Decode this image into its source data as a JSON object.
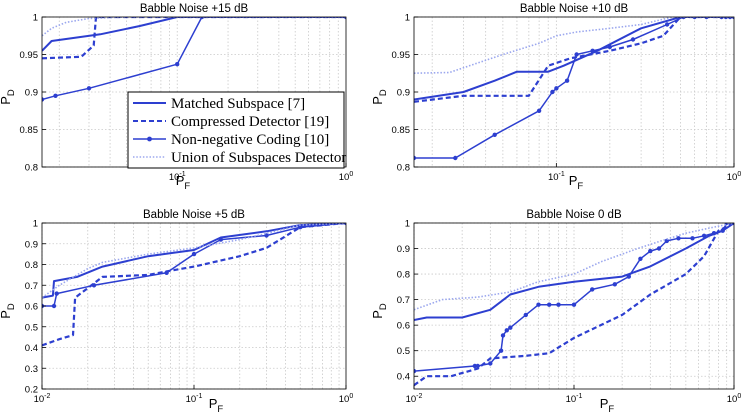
{
  "legend": {
    "entries": [
      {
        "label": "Matched Subspace [7]",
        "style": "solid"
      },
      {
        "label": "Compressed Detector [19]",
        "style": "dashed"
      },
      {
        "label": "Non-negative Coding [10]",
        "style": "solid-markers"
      },
      {
        "label": "Union of Subspaces Detector",
        "style": "dotted"
      }
    ]
  },
  "colors": {
    "main": "#2d3fd0",
    "dotted": "#9ba7ee",
    "grid": "#c9c9c9",
    "axis": "#000000"
  },
  "chart_data": [
    {
      "type": "line",
      "title": "Babble Noise +15 dB",
      "xlabel": "P_F",
      "ylabel": "P_D",
      "xscale": "log",
      "xlim": [
        0.0158,
        1
      ],
      "ylim": [
        0.8,
        1
      ],
      "xticks": [
        {
          "v": 0.1,
          "base": "10",
          "exp": "-1"
        },
        {
          "v": 1,
          "base": "10",
          "exp": "0"
        }
      ],
      "yticks": [
        0.8,
        0.85,
        0.9,
        0.95,
        1
      ],
      "ytick_labels": [
        "0.8",
        "0.85",
        "0.9",
        "0.95",
        "1"
      ],
      "grid": true,
      "legend_inside": true,
      "series": [
        {
          "name": "Matched Subspace [7]",
          "style": "solid",
          "x": [
            0.0158,
            0.018,
            0.035,
            0.06,
            0.1,
            1
          ],
          "y": [
            0.955,
            0.968,
            0.977,
            0.988,
            1.0,
            1.0
          ]
        },
        {
          "name": "Compressed Detector [19]",
          "style": "dashed",
          "x": [
            0.0158,
            0.027,
            0.032,
            0.033,
            1
          ],
          "y": [
            0.945,
            0.947,
            0.962,
            1.0,
            1.0
          ]
        },
        {
          "name": "Non-negative Coding [10]",
          "style": "solid-markers",
          "x": [
            0.0158,
            0.019,
            0.03,
            0.1,
            0.14,
            1
          ],
          "y": [
            0.89,
            0.895,
            0.905,
            0.937,
            1.0,
            1.0
          ]
        },
        {
          "name": "Union of Subspaces Detector",
          "style": "dotted",
          "x": [
            0.0158,
            0.018,
            0.022,
            0.03,
            0.05,
            1
          ],
          "y": [
            0.975,
            0.985,
            0.993,
            0.998,
            1.0,
            1.0
          ]
        }
      ]
    },
    {
      "type": "line",
      "title": "Babble Noise +10 dB",
      "xlabel": "P_F",
      "ylabel": "P_D",
      "xscale": "log",
      "xlim": [
        0.0158,
        1
      ],
      "ylim": [
        0.8,
        1
      ],
      "xticks": [
        {
          "v": 0.1,
          "base": "10",
          "exp": "-1"
        },
        {
          "v": 1,
          "base": "10",
          "exp": "0"
        }
      ],
      "yticks": [
        0.8,
        0.85,
        0.9,
        0.95,
        1
      ],
      "ytick_labels": [
        "0.8",
        "0.85",
        "0.9",
        "0.95",
        "1"
      ],
      "grid": true,
      "legend_inside": false,
      "series": [
        {
          "name": "Matched Subspace [7]",
          "style": "solid",
          "x": [
            0.0158,
            0.03,
            0.045,
            0.06,
            0.09,
            0.11,
            0.17,
            0.3,
            0.5,
            1
          ],
          "y": [
            0.89,
            0.9,
            0.915,
            0.927,
            0.927,
            0.935,
            0.955,
            0.985,
            1.0,
            1.0
          ]
        },
        {
          "name": "Compressed Detector [19]",
          "style": "dashed",
          "x": [
            0.0158,
            0.03,
            0.07,
            0.09,
            0.12,
            0.2,
            0.3,
            0.4,
            0.5,
            1
          ],
          "y": [
            0.887,
            0.895,
            0.895,
            0.935,
            0.945,
            0.955,
            0.965,
            0.975,
            1.0,
            1.0
          ]
        },
        {
          "name": "Non-negative Coding [10]",
          "style": "solid-markers",
          "x": [
            0.0158,
            0.027,
            0.045,
            0.08,
            0.095,
            0.1,
            0.115,
            0.13,
            0.16,
            0.2,
            0.27,
            0.42,
            0.52,
            0.6,
            0.7,
            0.85,
            0.9,
            0.95,
            1
          ],
          "y": [
            0.812,
            0.812,
            0.843,
            0.875,
            0.9,
            0.905,
            0.915,
            0.95,
            0.955,
            0.96,
            0.97,
            0.99,
            1.0,
            1.0,
            1.0,
            1.0,
            1.0,
            1.0,
            1.0
          ]
        },
        {
          "name": "Union of Subspaces Detector",
          "style": "dotted",
          "x": [
            0.0158,
            0.025,
            0.05,
            0.08,
            0.1,
            0.13,
            0.2,
            0.3,
            0.45,
            1
          ],
          "y": [
            0.925,
            0.926,
            0.95,
            0.965,
            0.975,
            0.98,
            0.985,
            0.99,
            1.0,
            1.0
          ]
        }
      ]
    },
    {
      "type": "line",
      "title": "Babble Noise +5 dB",
      "xlabel": "P_F",
      "ylabel": "P_D",
      "xscale": "log",
      "xlim": [
        0.01,
        1
      ],
      "ylim": [
        0.2,
        1
      ],
      "xticks": [
        {
          "v": 0.01,
          "base": "10",
          "exp": "-2"
        },
        {
          "v": 0.1,
          "base": "10",
          "exp": "-1"
        },
        {
          "v": 1,
          "base": "10",
          "exp": "0"
        }
      ],
      "yticks": [
        0.2,
        0.3,
        0.4,
        0.5,
        0.6,
        0.7,
        0.8,
        0.9,
        1
      ],
      "ytick_labels": [
        "0.2",
        "0.3",
        "0.4",
        "0.5",
        "0.6",
        "0.7",
        "0.8",
        "0.9",
        "1"
      ],
      "grid": true,
      "legend_inside": false,
      "series": [
        {
          "name": "Matched Subspace [7]",
          "style": "solid",
          "x": [
            0.01,
            0.0118,
            0.012,
            0.017,
            0.025,
            0.05,
            0.1,
            0.15,
            0.3,
            0.5,
            1
          ],
          "y": [
            0.64,
            0.65,
            0.72,
            0.74,
            0.79,
            0.84,
            0.87,
            0.93,
            0.96,
            0.99,
            1.0
          ]
        },
        {
          "name": "Compressed Detector [19]",
          "style": "dashed",
          "x": [
            0.01,
            0.013,
            0.016,
            0.0165,
            0.025,
            0.05,
            0.07,
            0.1,
            0.2,
            0.3,
            0.5,
            1
          ],
          "y": [
            0.41,
            0.44,
            0.46,
            0.64,
            0.74,
            0.75,
            0.77,
            0.79,
            0.84,
            0.88,
            0.98,
            1.0
          ]
        },
        {
          "name": "Non-negative Coding [10]",
          "style": "solid-markers",
          "x": [
            0.01,
            0.012,
            0.0125,
            0.022,
            0.066,
            0.1,
            0.15,
            0.3,
            0.5,
            1
          ],
          "y": [
            0.6,
            0.6,
            0.66,
            0.7,
            0.76,
            0.85,
            0.92,
            0.94,
            0.98,
            1.0
          ]
        },
        {
          "name": "Union of Subspaces Detector",
          "style": "dotted",
          "x": [
            0.01,
            0.013,
            0.02,
            0.025,
            0.05,
            0.1,
            0.2,
            0.3,
            0.5,
            1
          ],
          "y": [
            0.64,
            0.7,
            0.78,
            0.81,
            0.85,
            0.88,
            0.92,
            0.95,
            0.99,
            1.0
          ]
        }
      ]
    },
    {
      "type": "line",
      "title": "Babble Noise 0 dB",
      "xlabel": "P_F",
      "ylabel": "P_D",
      "xscale": "log",
      "xlim": [
        0.01,
        1
      ],
      "ylim": [
        0.35,
        1
      ],
      "xticks": [
        {
          "v": 0.01,
          "base": "10",
          "exp": "-2"
        },
        {
          "v": 0.1,
          "base": "10",
          "exp": "-1"
        },
        {
          "v": 1,
          "base": "10",
          "exp": "0"
        }
      ],
      "yticks": [
        0.4,
        0.5,
        0.6,
        0.7,
        0.8,
        0.9,
        1
      ],
      "ytick_labels": [
        "0.4",
        "0.5",
        "0.6",
        "0.7",
        "0.8",
        "0.9",
        "1"
      ],
      "grid": true,
      "legend_inside": false,
      "series": [
        {
          "name": "Matched Subspace [7]",
          "style": "solid",
          "x": [
            0.01,
            0.012,
            0.02,
            0.03,
            0.04,
            0.06,
            0.1,
            0.2,
            0.3,
            0.5,
            0.7,
            0.85,
            1
          ],
          "y": [
            0.62,
            0.63,
            0.63,
            0.66,
            0.72,
            0.75,
            0.77,
            0.79,
            0.83,
            0.9,
            0.95,
            0.97,
            1.0
          ]
        },
        {
          "name": "Compressed Detector [19]",
          "style": "dashed",
          "x": [
            0.01,
            0.012,
            0.017,
            0.025,
            0.03,
            0.05,
            0.07,
            0.1,
            0.2,
            0.3,
            0.5,
            0.65,
            0.8,
            1
          ],
          "y": [
            0.365,
            0.4,
            0.4,
            0.43,
            0.47,
            0.48,
            0.49,
            0.55,
            0.64,
            0.72,
            0.8,
            0.87,
            0.97,
            1.0
          ]
        },
        {
          "name": "Non-negative Coding [10]",
          "style": "solid-markers",
          "x": [
            0.01,
            0.024,
            0.025,
            0.03,
            0.035,
            0.036,
            0.038,
            0.04,
            0.05,
            0.06,
            0.07,
            0.08,
            0.1,
            0.13,
            0.18,
            0.22,
            0.26,
            0.3,
            0.34,
            0.38,
            0.45,
            0.55,
            0.65,
            0.75,
            0.85,
            0.9,
            1
          ],
          "y": [
            0.42,
            0.44,
            0.44,
            0.45,
            0.5,
            0.56,
            0.58,
            0.59,
            0.64,
            0.68,
            0.68,
            0.68,
            0.68,
            0.74,
            0.76,
            0.79,
            0.86,
            0.89,
            0.9,
            0.93,
            0.94,
            0.94,
            0.95,
            0.96,
            0.97,
            1.0,
            1.0
          ]
        },
        {
          "name": "Union of Subspaces Detector",
          "style": "dotted",
          "x": [
            0.01,
            0.015,
            0.025,
            0.04,
            0.06,
            0.1,
            0.15,
            0.25,
            0.35,
            0.5,
            0.7,
            1
          ],
          "y": [
            0.66,
            0.7,
            0.71,
            0.73,
            0.77,
            0.8,
            0.85,
            0.9,
            0.93,
            0.96,
            0.98,
            1.0
          ]
        }
      ]
    }
  ]
}
